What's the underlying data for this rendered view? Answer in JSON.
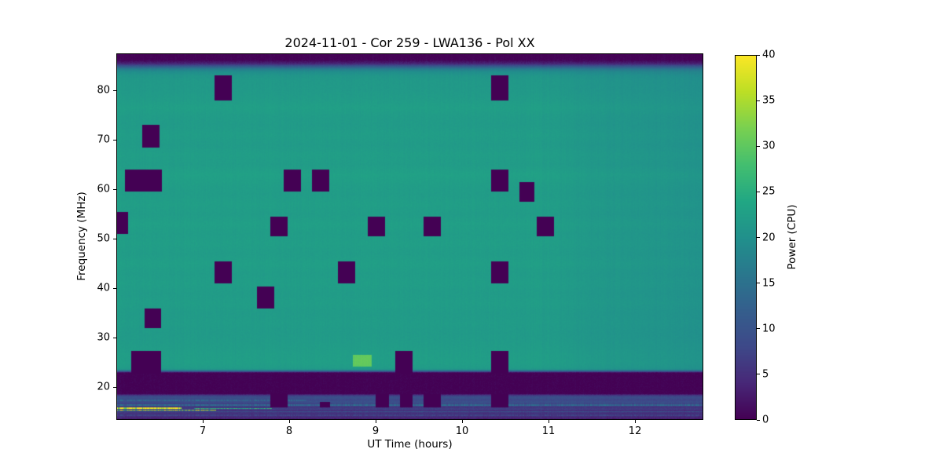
{
  "chart_data": {
    "type": "heatmap",
    "title": "2024-11-01 - Cor 259 - LWA136 - Pol XX",
    "xlabel": "UT Time (hours)",
    "ylabel": "Frequency (MHz)",
    "x_range": [
      6.0,
      12.79
    ],
    "y_range": [
      13.4,
      87.5
    ],
    "x_ticks": [
      7,
      8,
      9,
      10,
      11,
      12
    ],
    "y_ticks": [
      20,
      30,
      40,
      50,
      60,
      70,
      80
    ],
    "grid": false,
    "colorbar": {
      "label": "Power (CPU)",
      "range": [
        0,
        40
      ],
      "ticks": [
        0,
        5,
        10,
        15,
        20,
        25,
        30,
        35,
        40
      ],
      "colormap": "viridis",
      "stops": [
        "#440154",
        "#482878",
        "#3e4989",
        "#355f8d",
        "#2a788e",
        "#21918c",
        "#22a884",
        "#44bf70",
        "#7ad151",
        "#bddf26",
        "#fde725"
      ]
    },
    "background_profile": {
      "freq_power": [
        [
          13.4,
          2.2
        ],
        [
          13.7,
          3.0
        ],
        [
          14.0,
          5.0
        ],
        [
          14.4,
          3.5
        ],
        [
          14.8,
          6.0
        ],
        [
          15.2,
          4.5
        ],
        [
          15.6,
          7.0
        ],
        [
          16.0,
          5.5
        ],
        [
          16.3,
          8.5
        ],
        [
          16.7,
          7.0
        ],
        [
          17.1,
          9.5
        ],
        [
          17.5,
          8.0
        ],
        [
          17.9,
          9.5
        ],
        [
          18.3,
          7.5
        ],
        [
          18.55,
          3.0
        ],
        [
          18.65,
          0.0
        ],
        [
          22.95,
          0.0
        ],
        [
          23.25,
          12.0
        ],
        [
          23.6,
          21.0
        ],
        [
          24.0,
          22.0
        ],
        [
          25.0,
          22.4
        ],
        [
          27.0,
          22.2
        ],
        [
          29.0,
          21.9
        ],
        [
          31.0,
          21.7
        ],
        [
          33.0,
          22.0
        ],
        [
          35.0,
          21.8
        ],
        [
          37.0,
          22.2
        ],
        [
          39.0,
          21.9
        ],
        [
          41.0,
          22.3
        ],
        [
          43.0,
          22.0
        ],
        [
          45.0,
          22.5
        ],
        [
          47.0,
          22.0
        ],
        [
          49.0,
          22.4
        ],
        [
          51.0,
          22.1
        ],
        [
          53.0,
          22.6
        ],
        [
          55.0,
          22.0
        ],
        [
          57.0,
          22.4
        ],
        [
          59.0,
          22.0
        ],
        [
          61.0,
          22.3
        ],
        [
          63.0,
          22.8
        ],
        [
          65.0,
          22.0
        ],
        [
          67.0,
          22.3
        ],
        [
          69.0,
          21.8
        ],
        [
          71.0,
          22.2
        ],
        [
          73.0,
          21.8
        ],
        [
          75.0,
          22.0
        ],
        [
          76.5,
          22.5
        ],
        [
          78.0,
          22.0
        ],
        [
          80.0,
          21.6
        ],
        [
          82.0,
          21.5
        ],
        [
          83.0,
          21.0
        ],
        [
          83.8,
          19.5
        ],
        [
          84.3,
          17.0
        ],
        [
          84.8,
          12.0
        ],
        [
          85.4,
          4.0
        ],
        [
          86.2,
          0.0
        ],
        [
          87.5,
          0.0
        ]
      ],
      "time_gain": [
        [
          6.0,
          1.0
        ],
        [
          10.9,
          1.0
        ],
        [
          11.5,
          0.96
        ],
        [
          12.2,
          0.94
        ],
        [
          12.79,
          0.92
        ]
      ],
      "noise_amplitude": 0.8
    },
    "flagged_blocks": [
      {
        "t": [
          6.0,
          6.14
        ],
        "f": [
          51.0,
          55.5
        ]
      },
      {
        "t": [
          6.1,
          6.53
        ],
        "f": [
          59.5,
          64.0
        ]
      },
      {
        "t": [
          6.3,
          6.5
        ],
        "f": [
          68.5,
          73.0
        ]
      },
      {
        "t": [
          6.33,
          6.52
        ],
        "f": [
          32.0,
          36.0
        ]
      },
      {
        "t": [
          6.17,
          6.52
        ],
        "f": [
          22.7,
          27.3
        ]
      },
      {
        "t": [
          7.14,
          7.34
        ],
        "f": [
          78.0,
          83.0
        ]
      },
      {
        "t": [
          7.14,
          7.34
        ],
        "f": [
          41.0,
          45.5
        ]
      },
      {
        "t": [
          7.63,
          7.83
        ],
        "f": [
          36.0,
          40.3
        ]
      },
      {
        "t": [
          7.78,
          7.98
        ],
        "f": [
          50.5,
          54.5
        ]
      },
      {
        "t": [
          7.94,
          8.14
        ],
        "f": [
          59.5,
          64.0
        ]
      },
      {
        "t": [
          8.26,
          8.46
        ],
        "f": [
          59.5,
          64.0
        ]
      },
      {
        "t": [
          8.56,
          8.76
        ],
        "f": [
          41.0,
          45.5
        ]
      },
      {
        "t": [
          8.91,
          9.11
        ],
        "f": [
          50.5,
          54.5
        ]
      },
      {
        "t": [
          9.23,
          9.43
        ],
        "f": [
          22.7,
          27.3
        ]
      },
      {
        "t": [
          9.55,
          9.75
        ],
        "f": [
          50.5,
          54.5
        ]
      },
      {
        "t": [
          10.34,
          10.54
        ],
        "f": [
          78.0,
          83.0
        ]
      },
      {
        "t": [
          10.34,
          10.54
        ],
        "f": [
          59.5,
          64.0
        ]
      },
      {
        "t": [
          10.34,
          10.54
        ],
        "f": [
          41.0,
          45.5
        ]
      },
      {
        "t": [
          10.34,
          10.54
        ],
        "f": [
          22.7,
          27.3
        ]
      },
      {
        "t": [
          10.66,
          10.84
        ],
        "f": [
          57.5,
          61.5
        ]
      },
      {
        "t": [
          10.86,
          11.06
        ],
        "f": [
          50.5,
          54.5
        ]
      },
      {
        "t": [
          7.78,
          7.98
        ],
        "f": [
          16.0,
          18.6
        ]
      },
      {
        "t": [
          8.35,
          8.47
        ],
        "f": [
          16.0,
          17.0
        ]
      },
      {
        "t": [
          9.0,
          9.15
        ],
        "f": [
          16.0,
          18.6
        ]
      },
      {
        "t": [
          9.28,
          9.43
        ],
        "f": [
          16.0,
          18.6
        ]
      },
      {
        "t": [
          9.55,
          9.75
        ],
        "f": [
          16.0,
          18.6
        ]
      },
      {
        "t": [
          10.34,
          10.54
        ],
        "f": [
          16.0,
          18.6
        ]
      }
    ],
    "bright_patches": [
      {
        "t": [
          8.74,
          8.95
        ],
        "f": [
          24.2,
          26.6
        ],
        "dp": 8
      }
    ],
    "rfi_lines": [
      {
        "f": 16.35,
        "df": 0.3,
        "t": [
          6.0,
          12.79
        ],
        "p": 13
      },
      {
        "f": 17.35,
        "df": 0.2,
        "t": [
          6.0,
          8.2
        ],
        "p": 12
      },
      {
        "f": 16.8,
        "df": 0.15,
        "t": [
          8.5,
          12.79
        ],
        "p": 10
      },
      {
        "f": 15.75,
        "df": 0.22,
        "t": [
          6.0,
          6.75
        ],
        "p": 39
      },
      {
        "f": 15.45,
        "df": 0.18,
        "t": [
          6.0,
          7.15
        ],
        "p": 32
      },
      {
        "f": 15.75,
        "df": 0.15,
        "t": [
          6.9,
          7.8
        ],
        "p": 24
      },
      {
        "f": 15.05,
        "df": 0.25,
        "t": [
          6.0,
          12.79
        ],
        "p": 10
      },
      {
        "f": 14.35,
        "df": 0.2,
        "t": [
          6.0,
          12.79
        ],
        "p": 7
      }
    ]
  }
}
